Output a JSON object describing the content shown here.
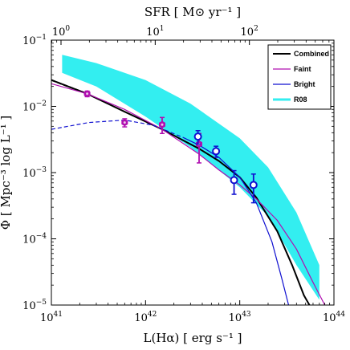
{
  "chart_data": {
    "type": "line",
    "xlabel": "L(Hα) [ erg s⁻¹ ]",
    "ylabel": "Φ [ Mpc⁻³ log L⁻¹ ]",
    "top_xlabel": "SFR [ M⊙ yr⁻¹ ]",
    "x_scale": "log",
    "y_scale": "log",
    "xlim": [
      1e+41,
      1e+44
    ],
    "ylim": [
      1e-05,
      0.1
    ],
    "x_ticks": [
      {
        "value": 1e+41,
        "label": "10",
        "exp": "41"
      },
      {
        "value": 1e+42,
        "label": "10",
        "exp": "42"
      },
      {
        "value": 1e+43,
        "label": "10",
        "exp": "43"
      },
      {
        "value": 1e+44,
        "label": "10",
        "exp": "44"
      }
    ],
    "y_ticks": [
      {
        "value": 1e-05,
        "label": "10",
        "exp": "−5"
      },
      {
        "value": 0.0001,
        "label": "10",
        "exp": "−4"
      },
      {
        "value": 0.001,
        "label": "10",
        "exp": "−3"
      },
      {
        "value": 0.01,
        "label": "10",
        "exp": "−2"
      },
      {
        "value": 0.1,
        "label": "10",
        "exp": "−1"
      }
    ],
    "top_ticks": [
      {
        "sfr": 1,
        "label": "10",
        "exp": "0"
      },
      {
        "sfr": 10,
        "label": "10",
        "exp": "1"
      },
      {
        "sfr": 100,
        "label": "10",
        "exp": "2"
      }
    ],
    "top_axis_sfr_per_lum": 7.9e-42,
    "legend": {
      "position": "top-right",
      "entries": [
        {
          "label": "Combined",
          "color": "#000000"
        },
        {
          "label": "Faint",
          "color": "#b010b0"
        },
        {
          "label": "Bright",
          "color": "#1010d0"
        },
        {
          "label": "R08",
          "color": "#33eef0"
        }
      ]
    },
    "series": [
      {
        "name": "Combined",
        "color": "#000000",
        "x": [
          1e+41,
          2.4e+41,
          6e+41,
          1.5e+42,
          3.7e+42,
          6e+42,
          1e+43,
          1.5e+43,
          2.5e+43,
          3.6e+43,
          4.8e+43,
          5.5e+43
        ],
        "y": [
          0.025,
          0.0155,
          0.0083,
          0.0045,
          0.0023,
          0.0015,
          0.00085,
          0.00042,
          0.00013,
          4e-05,
          1.4e-05,
          1e-05
        ]
      },
      {
        "name": "Combined (extrapolated)",
        "color": "#000000",
        "dashed": true,
        "x": [
          1e+41,
          1.5e+41,
          2.4e+41
        ],
        "y": [
          0.025,
          0.02,
          0.0155
        ]
      },
      {
        "name": "Faint",
        "color": "#b010b0",
        "x": [
          1e+41,
          2.4e+41,
          6e+41,
          1.5e+42,
          3.7e+42,
          6e+42,
          1e+43,
          1.5e+43,
          2.5e+43,
          4e+43,
          6e+43,
          8e+43
        ],
        "y": [
          0.022,
          0.0155,
          0.009,
          0.0045,
          0.0019,
          0.0011,
          0.00065,
          0.0004,
          0.00019,
          7e-05,
          2.2e-05,
          1e-05
        ]
      },
      {
        "name": "Bright",
        "color": "#1010d0",
        "x": [
          2.5e+42,
          3.7e+42,
          6e+42,
          1e+43,
          1.5e+43,
          2.2e+43,
          2.8e+43,
          3.3e+43
        ],
        "y": [
          0.0034,
          0.0026,
          0.0017,
          0.00085,
          0.00035,
          9e-05,
          2.5e-05,
          1e-05
        ]
      },
      {
        "name": "Bright (extrapolated)",
        "color": "#1010d0",
        "dashed": true,
        "x": [
          1e+41,
          2.5e+41,
          6e+41,
          1.2e+42,
          2.5e+42
        ],
        "y": [
          0.0045,
          0.0057,
          0.0062,
          0.0052,
          0.0034
        ]
      }
    ],
    "band": {
      "name": "R08",
      "color": "#33eef0",
      "x": [
        1.3e+41,
        3e+41,
        1e+42,
        3e+42,
        1e+43,
        2e+43,
        4e+43,
        7e+43
      ],
      "upper": [
        0.06,
        0.045,
        0.025,
        0.011,
        0.0033,
        0.0012,
        0.00025,
        4e-05
      ],
      "lower": [
        0.032,
        0.02,
        0.007,
        0.0024,
        0.0006,
        0.00022,
        4e-05,
        1.2e-05
      ]
    },
    "points": [
      {
        "name": "Faint",
        "color": "#b010b0",
        "marker": "hexagon-filled",
        "data": [
          {
            "x": 2.4e+41,
            "y": 0.0155,
            "err_lo": 0.0015,
            "err_hi": 0.0015
          },
          {
            "x": 6e+41,
            "y": 0.0057,
            "err_lo": 0.0008,
            "err_hi": 0.0008
          },
          {
            "x": 1.5e+42,
            "y": 0.0053,
            "err_lo": 0.0014,
            "err_hi": 0.0015
          },
          {
            "x": 3.7e+42,
            "y": 0.0027,
            "err_lo": 0.0013,
            "err_hi": 0.0012
          }
        ]
      },
      {
        "name": "Bright",
        "color": "#1010d0",
        "marker": "circle-open",
        "data": [
          {
            "x": 3.6e+42,
            "y": 0.0035,
            "err_lo": 0.0008,
            "err_hi": 0.0008
          },
          {
            "x": 5.6e+42,
            "y": 0.0021,
            "err_lo": 0.0004,
            "err_hi": 0.0004
          },
          {
            "x": 8.7e+42,
            "y": 0.00077,
            "err_lo": 0.0003,
            "err_hi": 0.0003
          },
          {
            "x": 1.4e+43,
            "y": 0.00065,
            "err_lo": 0.0003,
            "err_hi": 0.0003
          }
        ]
      }
    ]
  }
}
